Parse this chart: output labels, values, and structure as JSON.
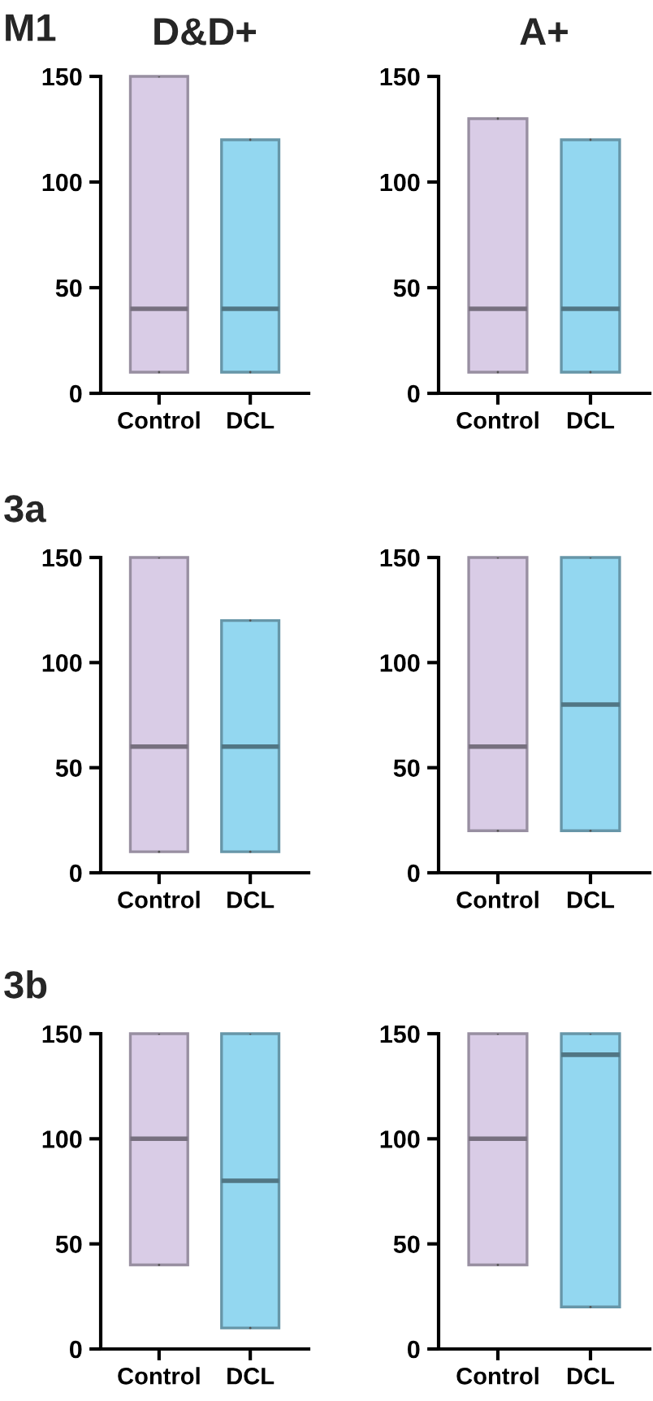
{
  "chart_data": [
    {
      "type": "box",
      "title": "D&D+",
      "annotations": [
        "M1"
      ],
      "categories": [
        "Control",
        "DCL"
      ],
      "colors": [
        "#d9cce6",
        "#93d7f0"
      ],
      "ylim": [
        0,
        150
      ],
      "yticks": [
        0,
        50,
        100,
        150
      ],
      "boxes": [
        {
          "low": 10,
          "q1": 10,
          "median": 40,
          "q3": 150,
          "high": 150
        },
        {
          "low": 10,
          "q1": 10,
          "median": 40,
          "q3": 120,
          "high": 120
        }
      ]
    },
    {
      "type": "box",
      "title": "A+",
      "categories": [
        "Control",
        "DCL"
      ],
      "colors": [
        "#d9cce6",
        "#93d7f0"
      ],
      "ylim": [
        0,
        150
      ],
      "yticks": [
        0,
        50,
        100,
        150
      ],
      "boxes": [
        {
          "low": 10,
          "q1": 10,
          "median": 40,
          "q3": 130,
          "high": 130
        },
        {
          "low": 10,
          "q1": 10,
          "median": 40,
          "q3": 120,
          "high": 120
        }
      ]
    },
    {
      "type": "box",
      "annotations": [
        "3a"
      ],
      "categories": [
        "Control",
        "DCL"
      ],
      "colors": [
        "#d9cce6",
        "#93d7f0"
      ],
      "ylim": [
        0,
        150
      ],
      "yticks": [
        0,
        50,
        100,
        150
      ],
      "boxes": [
        {
          "low": 10,
          "q1": 10,
          "median": 60,
          "q3": 150,
          "high": 150
        },
        {
          "low": 10,
          "q1": 10,
          "median": 60,
          "q3": 120,
          "high": 120
        }
      ]
    },
    {
      "type": "box",
      "categories": [
        "Control",
        "DCL"
      ],
      "colors": [
        "#d9cce6",
        "#93d7f0"
      ],
      "ylim": [
        0,
        150
      ],
      "yticks": [
        0,
        50,
        100,
        150
      ],
      "boxes": [
        {
          "low": 20,
          "q1": 20,
          "median": 60,
          "q3": 150,
          "high": 150
        },
        {
          "low": 20,
          "q1": 20,
          "median": 80,
          "q3": 150,
          "high": 150
        }
      ]
    },
    {
      "type": "box",
      "annotations": [
        "3b"
      ],
      "categories": [
        "Control",
        "DCL"
      ],
      "colors": [
        "#d9cce6",
        "#93d7f0"
      ],
      "ylim": [
        0,
        150
      ],
      "yticks": [
        0,
        50,
        100,
        150
      ],
      "boxes": [
        {
          "low": 40,
          "q1": 40,
          "median": 100,
          "q3": 150,
          "high": 150
        },
        {
          "low": 10,
          "q1": 10,
          "median": 80,
          "q3": 150,
          "high": 150
        }
      ]
    },
    {
      "type": "box",
      "categories": [
        "Control",
        "DCL"
      ],
      "colors": [
        "#d9cce6",
        "#93d7f0"
      ],
      "ylim": [
        0,
        150
      ],
      "yticks": [
        0,
        50,
        100,
        150
      ],
      "boxes": [
        {
          "low": 40,
          "q1": 40,
          "median": 100,
          "q3": 150,
          "high": 150
        },
        {
          "low": 20,
          "q1": 20,
          "median": 140,
          "q3": 150,
          "high": 150
        }
      ]
    }
  ]
}
